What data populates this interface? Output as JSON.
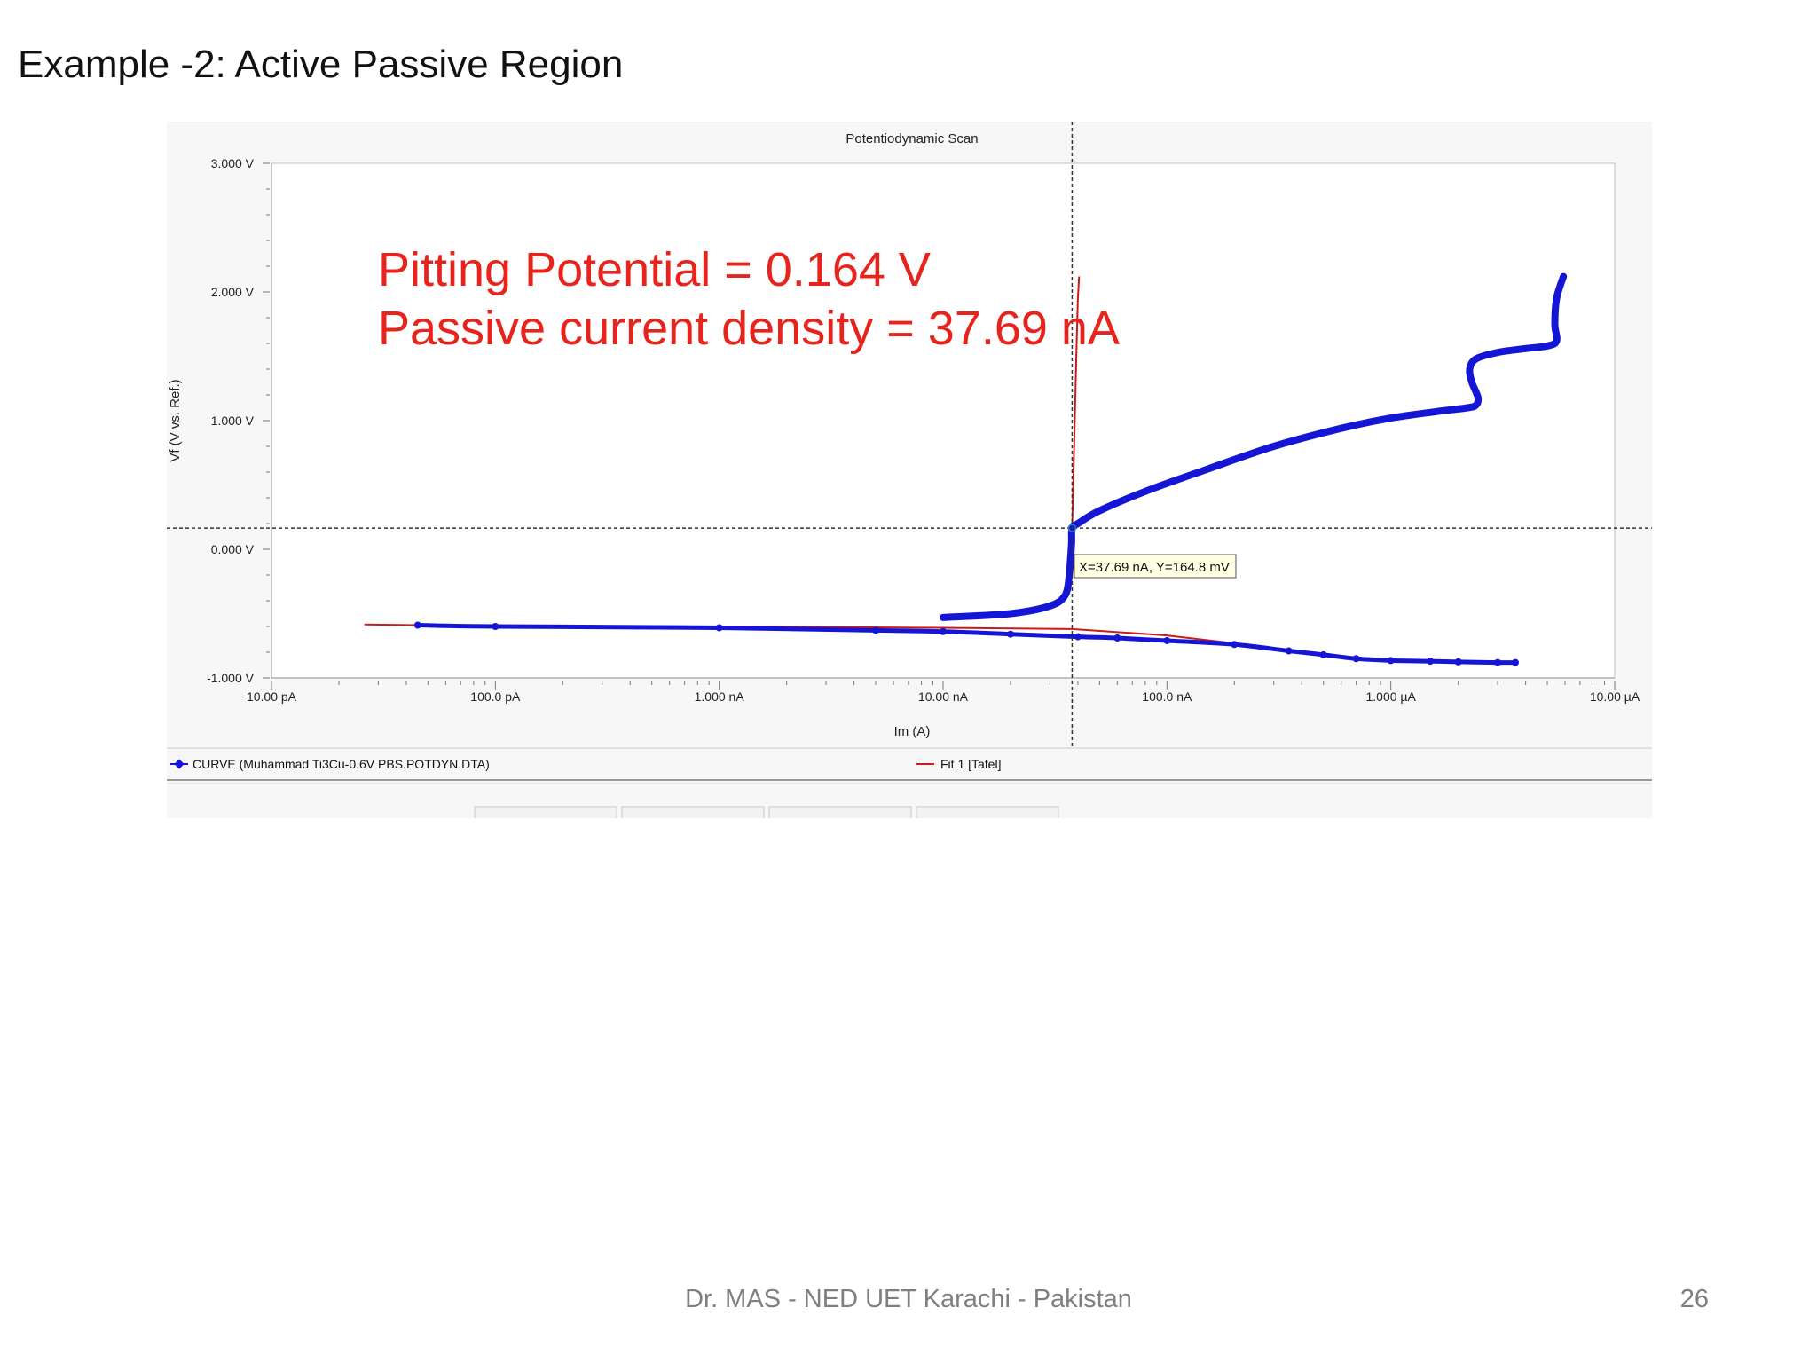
{
  "slide": {
    "title": "Example -2: Active Passive Region",
    "footer": "Dr. MAS - NED UET Karachi - Pakistan",
    "page_number": "26"
  },
  "annotation": {
    "line1": "Pitting Potential = 0.164 V",
    "line2": "Passive current density = 37.69 nA",
    "color": "#e8231b"
  },
  "cursor": {
    "x_label": "37.69 nA",
    "y_label": "164.8 mV",
    "readout": "X=37.69 nA, Y=164.8 mV"
  },
  "legend": {
    "curve_label": "CURVE (Muhammad Ti3Cu-0.6V PBS.POTDYN.DTA)",
    "fit_label": "Fit 1 [Tafel]"
  },
  "colors": {
    "curve": "#1515d6",
    "fit": "#cc1a1a",
    "panel": "#f7f7f7",
    "plot_bg": "#ffffff"
  },
  "chart_data": {
    "type": "line",
    "title": "Potentiodynamic Scan",
    "xlabel": "Im (A)",
    "ylabel": "Vf (V vs. Ref.)",
    "x_scale": "log",
    "xlim": [
      1e-11,
      1e-05
    ],
    "ylim": [
      -1.0,
      3.0
    ],
    "x_ticks": [
      {
        "value": 1e-11,
        "label": "10.00 pA"
      },
      {
        "value": 1e-10,
        "label": "100.0 pA"
      },
      {
        "value": 1e-09,
        "label": "1.000 nA"
      },
      {
        "value": 1e-08,
        "label": "10.00 nA"
      },
      {
        "value": 1e-07,
        "label": "100.0 nA"
      },
      {
        "value": 1e-06,
        "label": "1.000 µA"
      },
      {
        "value": 1e-05,
        "label": "10.00 µA"
      }
    ],
    "y_ticks": [
      {
        "value": 3.0,
        "label": "3.000 V"
      },
      {
        "value": 2.0,
        "label": "2.000 V"
      },
      {
        "value": 1.0,
        "label": "1.000 V"
      },
      {
        "value": 0.0,
        "label": "0.000 V"
      },
      {
        "value": -1.0,
        "label": "-1.000 V"
      }
    ],
    "cursor_point": {
      "x": 3.769e-08,
      "y": 0.1648
    },
    "series": [
      {
        "name": "CURVE (Muhammad Ti3Cu-0.6V PBS.POTDYN.DTA)",
        "cathodic_x": [
          3.6e-06,
          3e-06,
          2e-06,
          1.5e-06,
          1e-06,
          7e-07,
          5e-07,
          3.5e-07,
          2e-07,
          1e-07,
          6e-08,
          4e-08,
          2e-08,
          1e-08,
          5e-09,
          1e-09,
          1e-10,
          4.5e-11
        ],
        "cathodic_y": [
          -0.88,
          -0.88,
          -0.875,
          -0.87,
          -0.865,
          -0.85,
          -0.82,
          -0.79,
          -0.74,
          -0.71,
          -0.69,
          -0.68,
          -0.66,
          -0.64,
          -0.63,
          -0.61,
          -0.6,
          -0.59
        ],
        "anodic_x": [
          1e-08,
          2e-08,
          3e-08,
          3.5e-08,
          3.65e-08,
          3.7e-08,
          3.75e-08,
          3.769e-08,
          4e-08,
          5e-08,
          8e-08,
          1.5e-07,
          3e-07,
          6e-07,
          1e-06,
          1.6e-06,
          2.2e-06,
          2.4e-06,
          2.45e-06,
          2.3e-06,
          2.25e-06,
          2.4e-06,
          3e-06,
          4e-06,
          5e-06,
          5.5e-06,
          5.4e-06,
          5.5e-06,
          5.9e-06
        ],
        "anodic_y": [
          -0.53,
          -0.5,
          -0.44,
          -0.36,
          -0.22,
          -0.1,
          0.05,
          0.1648,
          0.2,
          0.3,
          0.45,
          0.62,
          0.8,
          0.94,
          1.02,
          1.07,
          1.1,
          1.12,
          1.18,
          1.3,
          1.4,
          1.48,
          1.53,
          1.56,
          1.58,
          1.62,
          1.75,
          1.95,
          2.12
        ]
      },
      {
        "name": "Fit 1 [Tafel]",
        "anodic_x": [
          3.769e-08,
          3.8e-08,
          3.85e-08,
          3.9e-08,
          3.95e-08,
          4e-08,
          4.05e-08
        ],
        "anodic_y": [
          0.1648,
          0.4,
          0.8,
          1.2,
          1.6,
          1.95,
          2.12
        ],
        "cathodic_x": [
          2.6e-11,
          4.5e-11,
          1e-10,
          1e-09,
          1e-08,
          3.769e-08,
          1e-07,
          3.5e-07,
          6e-07,
          8e-07
        ],
        "cathodic_y": [
          -0.585,
          -0.59,
          -0.595,
          -0.6,
          -0.61,
          -0.62,
          -0.67,
          -0.78,
          -0.83,
          -0.85
        ]
      }
    ]
  }
}
